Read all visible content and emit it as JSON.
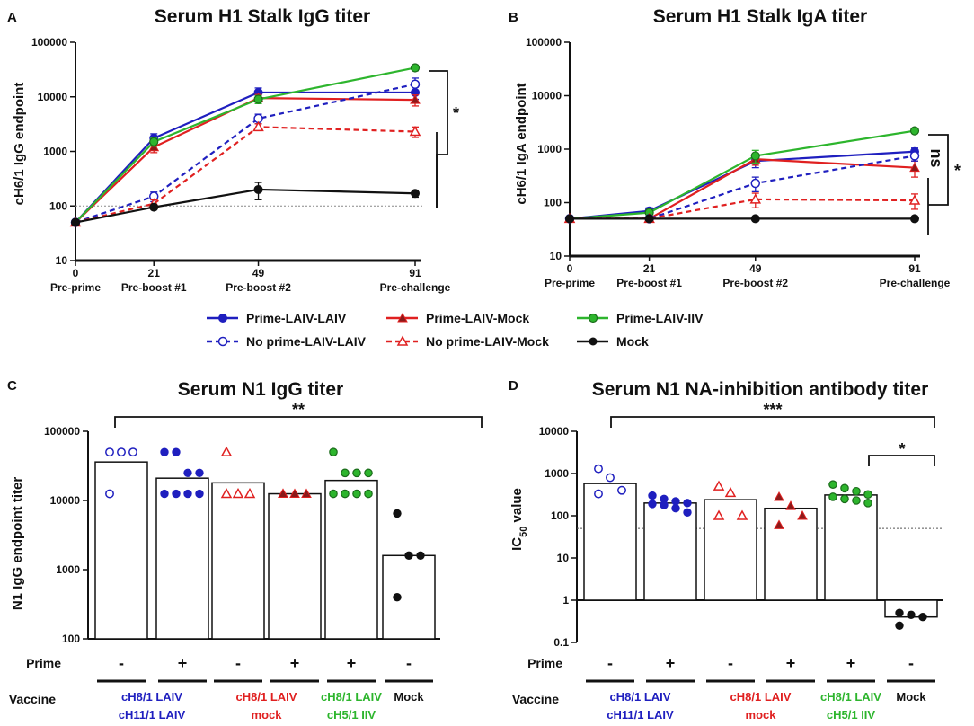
{
  "chart_data": [
    {
      "panel": "A",
      "type": "line",
      "title": "Serum H1 Stalk IgG titer",
      "ylabel": "cH6/1 IgG endpoint",
      "yscale": "log",
      "ylim": [
        10,
        100000
      ],
      "yticks": [
        "10",
        "100",
        "1000",
        "10000",
        "100000"
      ],
      "x": [
        0,
        21,
        49,
        91
      ],
      "xtick_labels": [
        "0",
        "21",
        "49",
        "91"
      ],
      "timepoint_labels": [
        "Pre-prime",
        "Pre-boost #1",
        "Pre-boost #2",
        "Pre-challenge"
      ],
      "reference_line": 100,
      "series": [
        {
          "name": "Prime-LAIV-LAIV",
          "color": "#1f1fbf",
          "style": "solid",
          "marker": "circle-filled",
          "values": [
            50,
            1750,
            12000,
            12000
          ],
          "err": [
            0,
            350,
            2500,
            3000
          ]
        },
        {
          "name": "Prime-LAIV-Mock",
          "color": "#e02020",
          "style": "solid",
          "marker": "triangle-filled",
          "values": [
            50,
            1200,
            9500,
            8800
          ],
          "err": [
            0,
            250,
            1500,
            2000
          ]
        },
        {
          "name": "Prime-LAIV-IIV",
          "color": "#2db52d",
          "style": "solid",
          "marker": "circle-green",
          "values": [
            50,
            1500,
            9000,
            34000
          ],
          "err": [
            0,
            250,
            1500,
            4000
          ]
        },
        {
          "name": "No prime-LAIV-LAIV",
          "color": "#1f1fbf",
          "style": "dashed",
          "marker": "circle-open",
          "values": [
            50,
            150,
            4000,
            17000
          ],
          "err": [
            0,
            30,
            800,
            5000
          ]
        },
        {
          "name": "No prime-LAIV-Mock",
          "color": "#e02020",
          "style": "dashed",
          "marker": "triangle-open",
          "values": [
            50,
            110,
            2800,
            2300
          ],
          "err": [
            0,
            20,
            400,
            500
          ]
        },
        {
          "name": "Mock",
          "color": "#111111",
          "style": "solid",
          "marker": "circle-black",
          "values": [
            50,
            95,
            200,
            170
          ],
          "err": [
            0,
            0,
            70,
            25
          ]
        }
      ],
      "significance": [
        "*"
      ]
    },
    {
      "panel": "B",
      "type": "line",
      "title": "Serum H1 Stalk IgA titer",
      "ylabel": "cH6/1 IgA endpoint",
      "yscale": "log",
      "ylim": [
        10,
        100000
      ],
      "yticks": [
        "10",
        "100",
        "1000",
        "10000",
        "100000"
      ],
      "x": [
        0,
        21,
        49,
        91
      ],
      "xtick_labels": [
        "0",
        "21",
        "49",
        "91"
      ],
      "timepoint_labels": [
        "Pre-prime",
        "Pre-boost #1",
        "Pre-boost #2",
        "Pre-challenge"
      ],
      "series": [
        {
          "name": "Prime-LAIV-LAIV",
          "color": "#1f1fbf",
          "style": "solid",
          "marker": "circle-filled",
          "values": [
            50,
            70,
            600,
            900
          ],
          "err": [
            0,
            10,
            150,
            150
          ]
        },
        {
          "name": "Prime-LAIV-Mock",
          "color": "#e02020",
          "style": "solid",
          "marker": "triangle-filled",
          "values": [
            50,
            50,
            650,
            450
          ],
          "err": [
            0,
            0,
            150,
            150
          ]
        },
        {
          "name": "Prime-LAIV-IIV",
          "color": "#2db52d",
          "style": "solid",
          "marker": "circle-green",
          "values": [
            50,
            65,
            750,
            2200
          ],
          "err": [
            0,
            8,
            200,
            200
          ]
        },
        {
          "name": "No prime-LAIV-LAIV",
          "color": "#1f1fbf",
          "style": "dashed",
          "marker": "circle-open",
          "values": [
            50,
            50,
            230,
            750
          ],
          "err": [
            0,
            0,
            70,
            150
          ]
        },
        {
          "name": "No prime-LAIV-Mock",
          "color": "#e02020",
          "style": "dashed",
          "marker": "triangle-open",
          "values": [
            50,
            50,
            115,
            110
          ],
          "err": [
            0,
            0,
            35,
            35
          ]
        },
        {
          "name": "Mock",
          "color": "#111111",
          "style": "solid",
          "marker": "circle-black",
          "values": [
            50,
            50,
            50,
            50
          ],
          "err": [
            0,
            0,
            0,
            0
          ]
        }
      ],
      "significance": [
        "ns",
        "*"
      ]
    },
    {
      "panel": "C",
      "type": "bar",
      "title": "Serum N1 IgG titer",
      "ylabel": "N1 IgG endpoint titer",
      "yscale": "log",
      "ylim": [
        100,
        100000
      ],
      "yticks": [
        "100",
        "1000",
        "10000",
        "100000"
      ],
      "categories": [
        "cH8/1 LAIV cH11/1 LAIV (-)",
        "cH8/1 LAIV cH11/1 LAIV (+)",
        "cH8/1 LAIV mock (-)",
        "cH8/1 LAIV mock (+)",
        "cH8/1 LAIV cH5/1 IIV (+)",
        "Mock (-)"
      ],
      "bars": [
        {
          "value": 36000,
          "color": "#1f1fbf",
          "marker": "open-circle",
          "points": [
            50000,
            50000,
            50000,
            12500
          ]
        },
        {
          "value": 21000,
          "color": "#1f1fbf",
          "marker": "filled-circle",
          "points": [
            50000,
            50000,
            25000,
            25000,
            12500,
            12500,
            12500,
            12500
          ]
        },
        {
          "value": 18000,
          "color": "#e02020",
          "marker": "open-triangle",
          "points": [
            50000,
            12500,
            12500,
            12500
          ]
        },
        {
          "value": 12500,
          "color": "#e02020",
          "marker": "filled-triangle",
          "points": [
            12500,
            12500,
            12500,
            12500
          ]
        },
        {
          "value": 19500,
          "color": "#2db52d",
          "marker": "green-circle",
          "points": [
            50000,
            25000,
            25000,
            25000,
            12500,
            12500,
            12500,
            12500
          ]
        },
        {
          "value": 1600,
          "color": "#111111",
          "marker": "black-circle",
          "points": [
            6500,
            1600,
            1600,
            400
          ]
        }
      ],
      "prime": [
        "-",
        "+",
        "-",
        "+",
        "+",
        "-"
      ],
      "significance": [
        "**"
      ]
    },
    {
      "panel": "D",
      "type": "bar",
      "title": "Serum N1 NA-inhibition antibody titer",
      "ylabel": "IC",
      "ylabel_sub": "50",
      "ylabel_suffix": " value",
      "yscale": "log",
      "ylim": [
        0.1,
        10000
      ],
      "yticks": [
        "0.1",
        "1",
        "10",
        "100",
        "1000",
        "10000"
      ],
      "reference_line": 50,
      "categories": [
        "cH8/1 LAIV cH11/1 LAIV (-)",
        "cH8/1 LAIV cH11/1 LAIV (+)",
        "cH8/1 LAIV mock (-)",
        "cH8/1 LAIV mock (+)",
        "cH8/1 LAIV cH5/1 IIV (+)",
        "Mock (-)"
      ],
      "bars": [
        {
          "value": 580,
          "color": "#1f1fbf",
          "marker": "open-circle",
          "points": [
            1300,
            800,
            400,
            330
          ]
        },
        {
          "value": 200,
          "color": "#1f1fbf",
          "marker": "filled-circle",
          "points": [
            300,
            250,
            220,
            200,
            190,
            180,
            150,
            120
          ]
        },
        {
          "value": 240,
          "color": "#e02020",
          "marker": "open-triangle",
          "points": [
            500,
            350,
            100,
            100
          ]
        },
        {
          "value": 150,
          "color": "#e02020",
          "marker": "filled-triangle",
          "points": [
            280,
            170,
            100,
            60
          ]
        },
        {
          "value": 310,
          "color": "#2db52d",
          "marker": "green-circle",
          "points": [
            550,
            450,
            380,
            320,
            280,
            250,
            230,
            200
          ]
        },
        {
          "value": 0.4,
          "color": "#111111",
          "marker": "black-circle",
          "points": [
            0.5,
            0.45,
            0.4,
            0.25
          ]
        }
      ],
      "prime": [
        "-",
        "+",
        "-",
        "+",
        "+",
        "-"
      ],
      "significance": [
        "***",
        "*"
      ]
    }
  ],
  "panel_labels": [
    "A",
    "B",
    "C",
    "D"
  ],
  "titles": {
    "a": "Serum H1 Stalk IgG titer",
    "b": "Serum H1 Stalk IgA titer",
    "c": "Serum N1 IgG titer",
    "d": "Serum N1 NA-inhibition antibody titer"
  },
  "axis_labels": {
    "a_y": "cH6/1 IgG endpoint",
    "b_y": "cH6/1 IgA endpoint",
    "c_y": "N1 IgG endpoint titer",
    "d_y_main": "IC",
    "d_y_sub": "50",
    "d_y_suffix": " value"
  },
  "legend": {
    "items": [
      {
        "label": "Prime-LAIV-LAIV",
        "color": "#1f1fbf",
        "dashed": false,
        "marker": "circle-filled"
      },
      {
        "label": "Prime-LAIV-Mock",
        "color": "#e02020",
        "dashed": false,
        "marker": "triangle-filled"
      },
      {
        "label": "Prime-LAIV-IIV",
        "color": "#2db52d",
        "dashed": false,
        "marker": "circle-green"
      },
      {
        "label": "No prime-LAIV-LAIV",
        "color": "#1f1fbf",
        "dashed": true,
        "marker": "circle-open"
      },
      {
        "label": "No prime-LAIV-Mock",
        "color": "#e02020",
        "dashed": true,
        "marker": "triangle-open"
      },
      {
        "label": "Mock",
        "color": "#111111",
        "dashed": false,
        "marker": "circle-black"
      }
    ]
  },
  "bar_panel_labels": {
    "prime": "Prime",
    "vaccine": "Vaccine",
    "groups": [
      {
        "line1": "cH8/1 LAIV",
        "line2": "cH11/1 LAIV",
        "color": "#1f1fbf"
      },
      {
        "line1": "cH8/1 LAIV",
        "line2": "mock",
        "color": "#e02020"
      },
      {
        "line1": "cH8/1 LAIV",
        "line2": "cH5/1 IIV",
        "color": "#2db52d"
      },
      {
        "line1": "Mock",
        "line2": "",
        "color": "#111111"
      }
    ],
    "prime_marks": [
      "-",
      "+",
      "-",
      "+",
      "+",
      "-"
    ]
  },
  "significance": {
    "a": "*",
    "b_ns": "ns",
    "b_star": "*",
    "c": "**",
    "d_wide": "***",
    "d_narrow": "*"
  }
}
